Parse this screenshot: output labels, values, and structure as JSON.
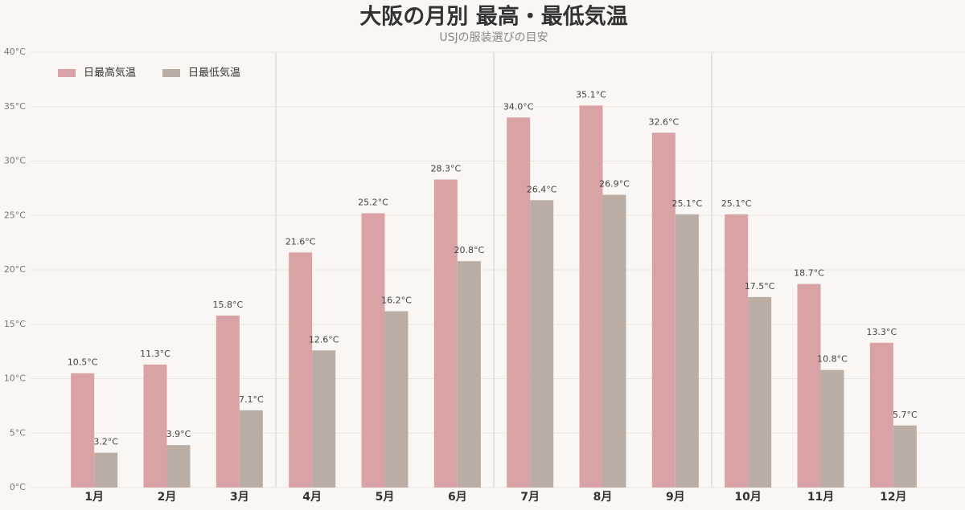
{
  "chart_data": {
    "type": "bar",
    "title": "大阪の月別 最高・最低気温",
    "subtitle": "USJの服装選びの目安",
    "categories": [
      "1月",
      "2月",
      "3月",
      "4月",
      "5月",
      "6月",
      "7月",
      "8月",
      "9月",
      "10月",
      "11月",
      "12月"
    ],
    "series": [
      {
        "name": "日最高気温",
        "color": "#d9a3a6",
        "values": [
          10.5,
          11.3,
          15.8,
          21.6,
          25.2,
          28.3,
          34.0,
          35.1,
          32.6,
          25.1,
          18.7,
          13.3
        ],
        "value_labels": [
          "10.5°C",
          "11.3°C",
          "15.8°C",
          "21.6°C",
          "25.2°C",
          "28.3°C",
          "34.0°C",
          "35.1°C",
          "32.6°C",
          "25.1°C",
          "18.7°C",
          "13.3°C"
        ]
      },
      {
        "name": "日最低気温",
        "color": "#b9ada4",
        "values": [
          3.2,
          3.9,
          7.1,
          12.6,
          16.2,
          20.8,
          26.4,
          26.9,
          25.1,
          17.5,
          10.8,
          5.7
        ],
        "value_labels": [
          "3.2°C",
          "3.9°C",
          "7.1°C",
          "12.6°C",
          "16.2°C",
          "20.8°C",
          "26.4°C",
          "26.9°C",
          "25.1°C",
          "17.5°C",
          "10.8°C",
          "5.7°C"
        ]
      }
    ],
    "ylim": [
      0,
      40
    ],
    "yticks": [
      {
        "value": 0,
        "label": "0°C"
      },
      {
        "value": 5,
        "label": "5°C"
      },
      {
        "value": 10,
        "label": "10°C"
      },
      {
        "value": 15,
        "label": "15°C"
      },
      {
        "value": 20,
        "label": "20°C"
      },
      {
        "value": 25,
        "label": "25°C"
      },
      {
        "value": 30,
        "label": "30°C"
      },
      {
        "value": 35,
        "label": "35°C"
      },
      {
        "value": 40,
        "label": "40°C"
      }
    ],
    "grid": true,
    "legend": "top-left"
  }
}
